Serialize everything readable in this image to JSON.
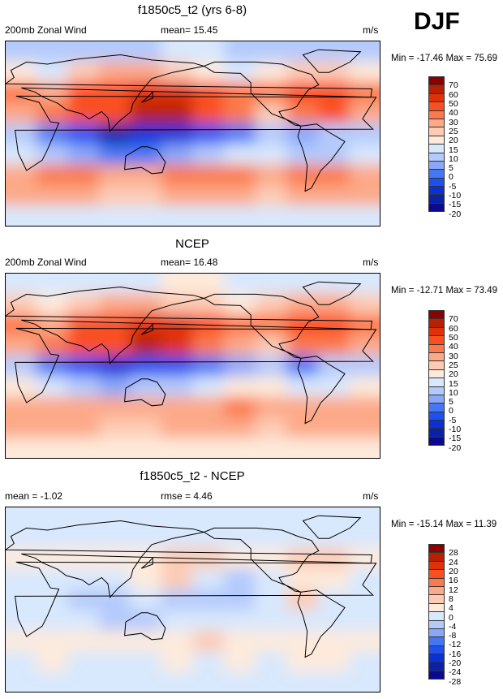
{
  "season": "DJF",
  "colors": [
    "#0a0a8c",
    "#0b22a8",
    "#0a30d8",
    "#1e50f0",
    "#4577f5",
    "#8aa8fa",
    "#b4cafc",
    "#d8e8fd",
    "#fdeadb",
    "#fdcbb4",
    "#fca988",
    "#fb7a4c",
    "#fa5020",
    "#e03208",
    "#b82004",
    "#8c0000"
  ],
  "chart_data": [
    {
      "type": "heatmap",
      "title": "f1850c5_t2 (yrs 6-8)",
      "left_label": "200mb Zonal Wind",
      "center_label": "mean=  15.45",
      "units": "m/s",
      "minmax": "Min = -17.46 Max =  75.69",
      "levels": [
        -20,
        -15,
        -10,
        -5,
        0,
        5,
        10,
        15,
        20,
        25,
        30,
        40,
        50,
        60,
        70
      ],
      "level_labels": [
        "70",
        "60",
        "50",
        "40",
        "30",
        "25",
        "20",
        "15",
        "10",
        "5",
        "0",
        "-5",
        "-10",
        "-15",
        "-20"
      ],
      "lon_centers": [
        15,
        45,
        75,
        105,
        135,
        165,
        195,
        225,
        255,
        285,
        315,
        345
      ],
      "lat_centers": [
        80,
        60,
        40,
        20,
        0,
        -20,
        -40,
        -60,
        -80
      ],
      "grid": [
        [
          5,
          5,
          5,
          5,
          5,
          10,
          10,
          5,
          5,
          5,
          5,
          5
        ],
        [
          15,
          10,
          20,
          25,
          25,
          20,
          15,
          10,
          15,
          20,
          20,
          15
        ],
        [
          30,
          25,
          40,
          40,
          50,
          55,
          45,
          35,
          30,
          45,
          45,
          35
        ],
        [
          25,
          30,
          40,
          45,
          62,
          60,
          40,
          30,
          20,
          35,
          40,
          25
        ],
        [
          5,
          -5,
          -10,
          -17,
          -15,
          -15,
          -10,
          -5,
          5,
          0,
          5,
          5
        ],
        [
          10,
          5,
          0,
          -5,
          -5,
          0,
          5,
          10,
          10,
          5,
          5,
          10
        ],
        [
          25,
          30,
          30,
          25,
          25,
          30,
          30,
          30,
          25,
          30,
          30,
          25
        ],
        [
          25,
          25,
          25,
          20,
          20,
          25,
          25,
          25,
          20,
          25,
          25,
          25
        ],
        [
          10,
          10,
          10,
          10,
          10,
          10,
          10,
          10,
          10,
          10,
          10,
          10
        ]
      ]
    },
    {
      "type": "heatmap",
      "title": "NCEP",
      "left_label": "200mb Zonal Wind",
      "center_label": "mean=  16.48",
      "units": "m/s",
      "minmax": "Min = -12.71 Max =  73.49",
      "levels": [
        -20,
        -15,
        -10,
        -5,
        0,
        5,
        10,
        15,
        20,
        25,
        30,
        40,
        50,
        60,
        70
      ],
      "level_labels": [
        "70",
        "60",
        "50",
        "40",
        "30",
        "25",
        "20",
        "15",
        "10",
        "5",
        "0",
        "-5",
        "-10",
        "-15",
        "-20"
      ],
      "lon_centers": [
        15,
        45,
        75,
        105,
        135,
        165,
        195,
        225,
        255,
        285,
        315,
        345
      ],
      "lat_centers": [
        80,
        60,
        40,
        20,
        0,
        -20,
        -40,
        -60,
        -80
      ],
      "grid": [
        [
          10,
          10,
          10,
          10,
          10,
          15,
          15,
          10,
          10,
          10,
          10,
          10
        ],
        [
          20,
          15,
          20,
          25,
          25,
          20,
          20,
          15,
          20,
          25,
          25,
          20
        ],
        [
          30,
          25,
          40,
          40,
          50,
          50,
          40,
          35,
          30,
          40,
          40,
          35
        ],
        [
          25,
          30,
          40,
          45,
          60,
          55,
          35,
          25,
          20,
          30,
          35,
          25
        ],
        [
          5,
          -5,
          -10,
          -12,
          -10,
          -10,
          -5,
          0,
          5,
          -5,
          5,
          5
        ],
        [
          15,
          10,
          5,
          0,
          5,
          5,
          10,
          15,
          15,
          10,
          10,
          15
        ],
        [
          25,
          25,
          25,
          25,
          25,
          25,
          25,
          30,
          25,
          25,
          25,
          25
        ],
        [
          25,
          25,
          25,
          20,
          20,
          25,
          25,
          25,
          20,
          25,
          25,
          25
        ],
        [
          15,
          15,
          15,
          15,
          15,
          15,
          15,
          15,
          15,
          15,
          15,
          15
        ]
      ]
    },
    {
      "type": "heatmap",
      "title": "f1850c5_t2 - NCEP",
      "left_label": "mean =  -1.02",
      "center_label": "rmse =   4.46",
      "units": "m/s",
      "minmax": "Min = -15.14 Max =  11.39",
      "levels": [
        -28,
        -24,
        -20,
        -16,
        -12,
        -8,
        -4,
        0,
        4,
        8,
        12,
        16,
        20,
        24,
        28
      ],
      "level_labels": [
        "28",
        "24",
        "20",
        "16",
        "12",
        "8",
        "4",
        "0",
        "-4",
        "-8",
        "-12",
        "-16",
        "-20",
        "-24",
        "-28"
      ],
      "lon_centers": [
        15,
        45,
        75,
        105,
        135,
        165,
        195,
        225,
        255,
        285,
        315,
        345
      ],
      "lat_centers": [
        80,
        60,
        40,
        20,
        0,
        -20,
        -40,
        -60,
        -80
      ],
      "grid": [
        [
          -2,
          -2,
          -2,
          -2,
          -2,
          -2,
          -2,
          -2,
          -2,
          -2,
          -2,
          -2
        ],
        [
          -3,
          -2,
          -1,
          -2,
          -2,
          -3,
          -4,
          -2,
          -3,
          -2,
          -3,
          -2
        ],
        [
          2,
          2,
          1,
          3,
          2,
          5,
          6,
          2,
          1,
          4,
          6,
          2
        ],
        [
          -1,
          -2,
          -2,
          -3,
          2,
          4,
          -3,
          -5,
          -2,
          3,
          2,
          -1
        ],
        [
          -2,
          -3,
          -5,
          -6,
          -4,
          -6,
          -8,
          -5,
          -2,
          4,
          -2,
          -2
        ],
        [
          -3,
          -3,
          -4,
          -5,
          -6,
          -4,
          -3,
          -4,
          -3,
          -3,
          -3,
          -3
        ],
        [
          2,
          3,
          3,
          1,
          1,
          3,
          4,
          2,
          1,
          3,
          3,
          2
        ],
        [
          -1,
          1,
          -1,
          -2,
          -1,
          0,
          -1,
          0,
          -1,
          1,
          0,
          -1
        ],
        [
          -4,
          -4,
          -4,
          -4,
          -4,
          -4,
          -4,
          -4,
          -4,
          -4,
          -4,
          -4
        ]
      ]
    }
  ]
}
